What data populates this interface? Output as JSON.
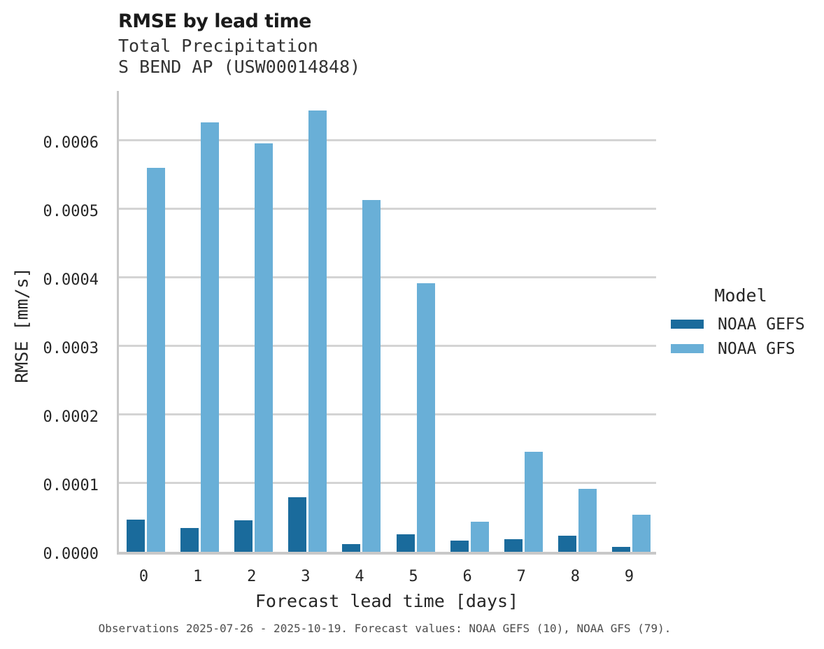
{
  "header": {
    "title": "RMSE by lead time",
    "subtitle1": "Total Precipitation",
    "subtitle2": "S BEND AP (USW00014848)"
  },
  "caption": "Observations 2025-07-26 - 2025-10-19. Forecast values: NOAA GEFS (10), NOAA GFS (79).",
  "chart_data": {
    "type": "bar",
    "title": "RMSE by lead time",
    "subtitle": "Total Precipitation — S BEND AP (USW00014848)",
    "categories": [
      "0",
      "1",
      "2",
      "3",
      "4",
      "5",
      "6",
      "7",
      "8",
      "9"
    ],
    "series": [
      {
        "name": "NOAA GEFS",
        "color": "#1a6b9c",
        "values": [
          4.7e-05,
          3.5e-05,
          4.6e-05,
          8e-05,
          1.1e-05,
          2.6e-05,
          1.6e-05,
          1.8e-05,
          2.3e-05,
          7e-06
        ]
      },
      {
        "name": "NOAA GFS",
        "color": "#69afd7",
        "values": [
          0.000561,
          0.000627,
          0.000596,
          0.000644,
          0.000514,
          0.000392,
          4.4e-05,
          0.000146,
          9.2e-05,
          5.4e-05
        ]
      }
    ],
    "xlabel": "Forecast lead time [days]",
    "ylabel": "RMSE [mm/s]",
    "ylim": [
      0,
      0.000677
    ],
    "ytick_step": 0.0001,
    "ytick_labels": [
      "0.0000",
      "0.0001",
      "0.0002",
      "0.0003",
      "0.0004",
      "0.0005",
      "0.0006"
    ],
    "grid": "horizontal",
    "legend_title": "Model",
    "legend_position": "right",
    "gridline_color": "#d4d4d4",
    "axis_color": "#c8c8c8"
  }
}
